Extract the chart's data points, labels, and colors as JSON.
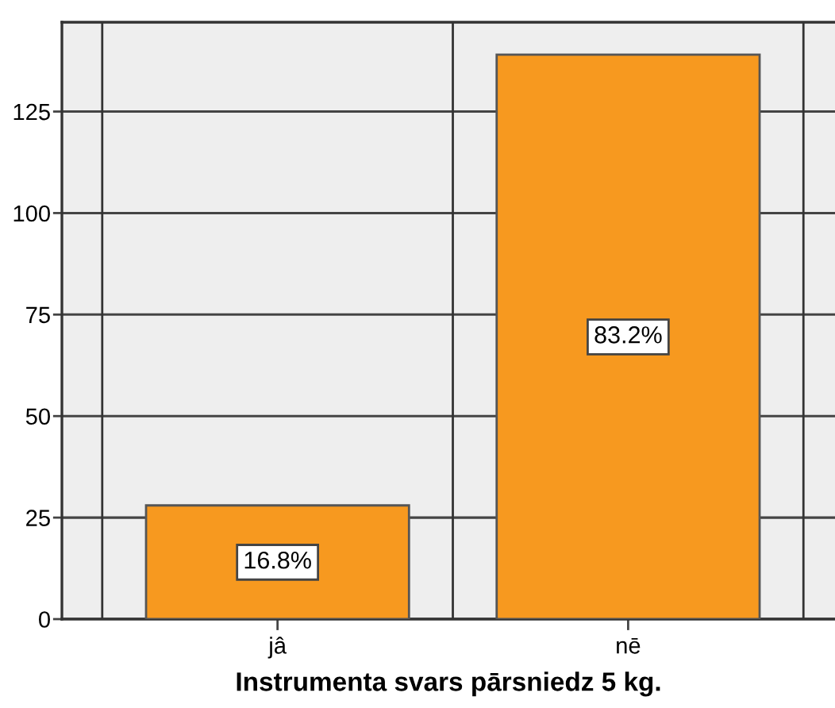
{
  "chart_data": {
    "type": "bar",
    "xlabel": "Instrumenta svars pārsniedz 5 kg.",
    "categories": [
      "jâ",
      "nē"
    ],
    "values": [
      28,
      139
    ],
    "color": "#f7991f",
    "annotations": [
      "16.8%",
      "83.2%"
    ],
    "ylim": [
      0,
      147
    ],
    "yticks": [
      0,
      25,
      50,
      75,
      100,
      125
    ],
    "grid": true
  }
}
